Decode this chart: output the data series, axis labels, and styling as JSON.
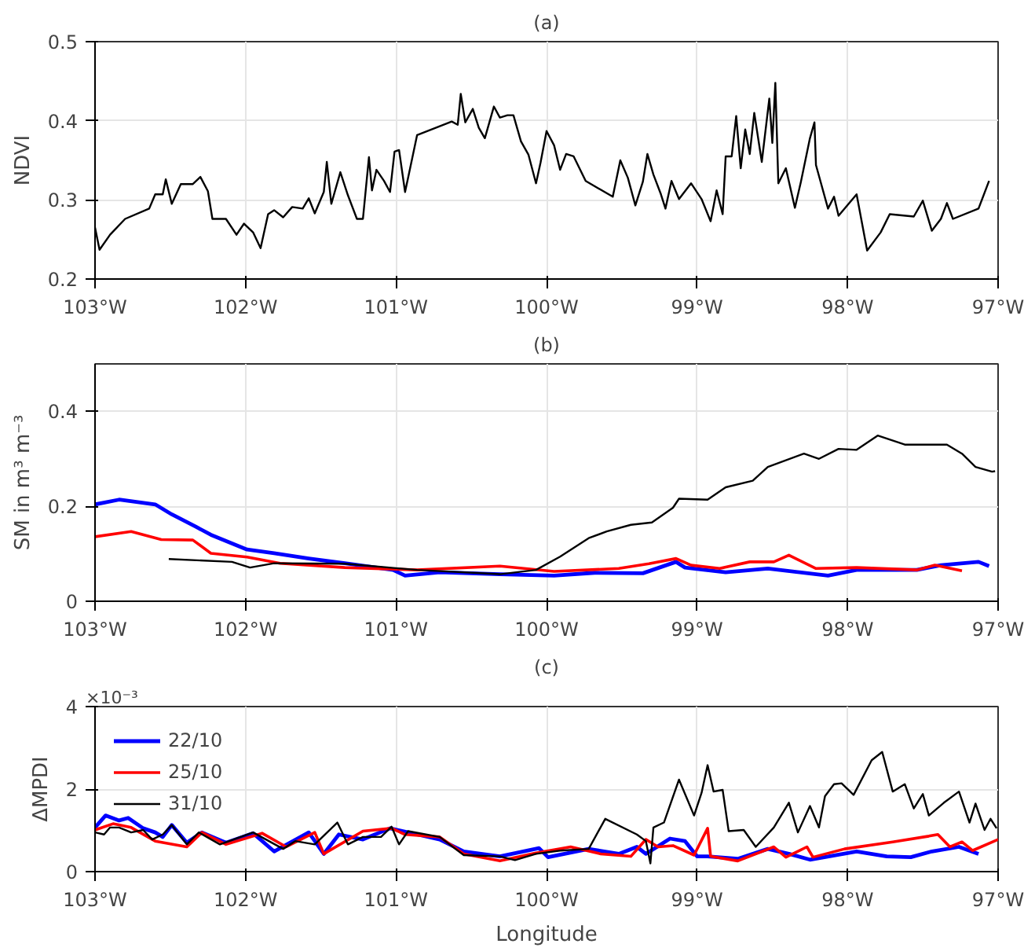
{
  "chart_data": [
    {
      "type": "line",
      "title": "(a)",
      "ylabel": "NDVI",
      "xlim": [
        -103,
        -97
      ],
      "ylim": [
        0.2,
        0.5
      ],
      "yticks": [
        0.2,
        0.3,
        0.4,
        0.5
      ],
      "xticks": [
        {
          "value": -103,
          "label": "103°W"
        },
        {
          "value": -102,
          "label": "102°W"
        },
        {
          "value": -101,
          "label": "101°W"
        },
        {
          "value": -100,
          "label": "100°W"
        },
        {
          "value": -99,
          "label": "99°W"
        },
        {
          "value": -98,
          "label": "98°W"
        },
        {
          "value": -97,
          "label": "97°W"
        }
      ],
      "grid": true,
      "legend": false,
      "series": [
        {
          "color": "#000000",
          "x": [
            -103.0,
            -102.97,
            -102.9,
            -102.8,
            -102.64,
            -102.6,
            -102.55,
            -102.53,
            -102.49,
            -102.43,
            -102.35,
            -102.3,
            -102.25,
            -102.22,
            -102.13,
            -102.06,
            -102.01,
            -101.95,
            -101.9,
            -101.85,
            -101.81,
            -101.75,
            -101.69,
            -101.62,
            -101.58,
            -101.54,
            -101.48,
            -101.46,
            -101.43,
            -101.37,
            -101.32,
            -101.26,
            -101.22,
            -101.18,
            -101.16,
            -101.13,
            -101.08,
            -101.04,
            -101.01,
            -100.98,
            -100.94,
            -100.92,
            -100.86,
            -100.63,
            -100.59,
            -100.57,
            -100.54,
            -100.49,
            -100.45,
            -100.41,
            -100.35,
            -100.31,
            -100.26,
            -100.22,
            -100.17,
            -100.12,
            -100.07,
            -100.04,
            -100.0,
            -99.95,
            -99.91,
            -99.87,
            -99.82,
            -99.74,
            -99.56,
            -99.51,
            -99.46,
            -99.41,
            -99.36,
            -99.33,
            -99.29,
            -99.24,
            -99.21,
            -99.17,
            -99.12,
            -99.04,
            -98.97,
            -98.91,
            -98.87,
            -98.83,
            -98.81,
            -98.77,
            -98.74,
            -98.71,
            -98.68,
            -98.65,
            -98.62,
            -98.57,
            -98.52,
            -98.5,
            -98.48,
            -98.46,
            -98.41,
            -98.35,
            -98.31,
            -98.25,
            -98.22,
            -98.21,
            -98.13,
            -98.09,
            -98.06,
            -97.94,
            -97.87,
            -97.78,
            -97.72,
            -97.56,
            -97.5,
            -97.44,
            -97.38,
            -97.34,
            -97.3,
            -97.13,
            -97.06
          ],
          "values": [
            0.265,
            0.237,
            0.256,
            0.276,
            0.289,
            0.307,
            0.307,
            0.326,
            0.295,
            0.32,
            0.32,
            0.329,
            0.311,
            0.276,
            0.276,
            0.256,
            0.27,
            0.259,
            0.239,
            0.282,
            0.287,
            0.278,
            0.291,
            0.289,
            0.302,
            0.283,
            0.31,
            0.348,
            0.295,
            0.335,
            0.306,
            0.276,
            0.276,
            0.354,
            0.312,
            0.338,
            0.324,
            0.31,
            0.361,
            0.363,
            0.31,
            0.328,
            0.382,
            0.399,
            0.395,
            0.434,
            0.398,
            0.415,
            0.391,
            0.378,
            0.418,
            0.404,
            0.407,
            0.407,
            0.374,
            0.357,
            0.321,
            0.347,
            0.387,
            0.369,
            0.338,
            0.358,
            0.355,
            0.324,
            0.304,
            0.35,
            0.328,
            0.293,
            0.323,
            0.358,
            0.332,
            0.307,
            0.289,
            0.324,
            0.301,
            0.321,
            0.301,
            0.273,
            0.312,
            0.282,
            0.355,
            0.355,
            0.406,
            0.34,
            0.389,
            0.358,
            0.41,
            0.348,
            0.428,
            0.372,
            0.448,
            0.321,
            0.34,
            0.29,
            0.323,
            0.378,
            0.398,
            0.344,
            0.289,
            0.304,
            0.28,
            0.307,
            0.236,
            0.259,
            0.282,
            0.279,
            0.299,
            0.261,
            0.276,
            0.296,
            0.276,
            0.289,
            0.324
          ]
        }
      ]
    },
    {
      "type": "line",
      "title": "(b)",
      "ylabel": "SM in m³ m⁻³",
      "xlim": [
        -103,
        -97
      ],
      "ylim": [
        0,
        0.5
      ],
      "yticks": [
        0,
        0.2,
        0.4
      ],
      "xticks": [
        {
          "value": -103,
          "label": "103°W"
        },
        {
          "value": -102,
          "label": "102°W"
        },
        {
          "value": -101,
          "label": "101°W"
        },
        {
          "value": -100,
          "label": "100°W"
        },
        {
          "value": -99,
          "label": "99°W"
        },
        {
          "value": -98,
          "label": "98°W"
        },
        {
          "value": -97,
          "label": "97°W"
        }
      ],
      "grid": true,
      "legend": false,
      "series": [
        {
          "color": "#0000ff",
          "x": [
            -103.0,
            -102.84,
            -102.6,
            -102.49,
            -102.33,
            -102.23,
            -101.99,
            -101.81,
            -101.58,
            -101.34,
            -101.02,
            -100.94,
            -100.71,
            -100.31,
            -99.95,
            -99.68,
            -99.36,
            -99.14,
            -99.08,
            -98.81,
            -98.53,
            -98.13,
            -97.94,
            -97.54,
            -97.38,
            -97.13,
            -97.06
          ],
          "values": [
            0.204,
            0.214,
            0.204,
            0.183,
            0.157,
            0.14,
            0.109,
            0.101,
            0.09,
            0.08,
            0.066,
            0.054,
            0.061,
            0.057,
            0.054,
            0.06,
            0.059,
            0.083,
            0.071,
            0.061,
            0.069,
            0.054,
            0.066,
            0.066,
            0.076,
            0.083,
            0.074
          ]
        },
        {
          "color": "#ff0000",
          "x": [
            -103.0,
            -102.76,
            -102.56,
            -102.35,
            -102.23,
            -101.99,
            -101.77,
            -101.34,
            -100.86,
            -100.31,
            -99.95,
            -99.52,
            -99.32,
            -99.14,
            -99.04,
            -98.85,
            -98.65,
            -98.49,
            -98.39,
            -98.21,
            -97.94,
            -97.54,
            -97.42,
            -97.24
          ],
          "values": [
            0.136,
            0.147,
            0.13,
            0.129,
            0.101,
            0.093,
            0.08,
            0.071,
            0.066,
            0.074,
            0.063,
            0.069,
            0.079,
            0.09,
            0.076,
            0.069,
            0.083,
            0.083,
            0.097,
            0.069,
            0.071,
            0.066,
            0.076,
            0.064
          ]
        },
        {
          "color": "#000000",
          "x": [
            -102.51,
            -102.09,
            -101.97,
            -101.81,
            -101.34,
            -100.86,
            -100.31,
            -100.07,
            -99.91,
            -99.72,
            -99.6,
            -99.44,
            -99.3,
            -99.16,
            -99.12,
            -98.93,
            -98.81,
            -98.63,
            -98.53,
            -98.29,
            -98.19,
            -98.06,
            -97.94,
            -97.8,
            -97.62,
            -97.34,
            -97.24,
            -97.15,
            -97.04,
            -97.02
          ],
          "values": [
            0.089,
            0.083,
            0.071,
            0.08,
            0.079,
            0.066,
            0.057,
            0.066,
            0.094,
            0.133,
            0.147,
            0.161,
            0.166,
            0.197,
            0.216,
            0.214,
            0.24,
            0.254,
            0.283,
            0.311,
            0.3,
            0.321,
            0.319,
            0.349,
            0.33,
            0.33,
            0.311,
            0.283,
            0.273,
            0.274
          ]
        }
      ]
    },
    {
      "type": "line",
      "title": "(c)",
      "ylabel": "ΔMPDI",
      "xlabel": "Longitude",
      "annotations": [
        "×10⁻³"
      ],
      "xlim": [
        -103,
        -97
      ],
      "ylim": [
        0,
        4
      ],
      "yticks": [
        0,
        2,
        4
      ],
      "xticks": [
        {
          "value": -103,
          "label": "103°W"
        },
        {
          "value": -102,
          "label": "102°W"
        },
        {
          "value": -101,
          "label": "101°W"
        },
        {
          "value": -100,
          "label": "100°W"
        },
        {
          "value": -99,
          "label": "99°W"
        },
        {
          "value": -98,
          "label": "98°W"
        },
        {
          "value": -97,
          "label": "97°W"
        }
      ],
      "grid": true,
      "legend": "top left",
      "series": [
        {
          "name": "22/10",
          "color": "#0000ff",
          "x": [
            -103.0,
            -102.93,
            -102.84,
            -102.78,
            -102.68,
            -102.6,
            -102.55,
            -102.49,
            -102.39,
            -102.29,
            -102.13,
            -101.95,
            -101.81,
            -101.58,
            -101.48,
            -101.38,
            -101.22,
            -101.04,
            -100.71,
            -100.55,
            -100.31,
            -100.05,
            -99.99,
            -99.72,
            -99.52,
            -99.4,
            -99.34,
            -99.18,
            -99.08,
            -99.0,
            -98.93,
            -98.73,
            -98.53,
            -98.39,
            -98.25,
            -97.94,
            -97.74,
            -97.58,
            -97.44,
            -97.26,
            -97.13
          ],
          "values": [
            1.07,
            1.36,
            1.24,
            1.3,
            1.05,
            0.95,
            0.84,
            1.13,
            0.7,
            0.95,
            0.7,
            0.93,
            0.49,
            0.95,
            0.43,
            0.9,
            0.78,
            1.05,
            0.78,
            0.49,
            0.37,
            0.57,
            0.35,
            0.55,
            0.43,
            0.6,
            0.43,
            0.8,
            0.74,
            0.37,
            0.37,
            0.31,
            0.55,
            0.43,
            0.29,
            0.49,
            0.37,
            0.35,
            0.49,
            0.6,
            0.43
          ]
        },
        {
          "name": "25/10",
          "color": "#ff0000",
          "x": [
            -103.0,
            -102.88,
            -102.76,
            -102.6,
            -102.39,
            -102.29,
            -102.13,
            -101.89,
            -101.73,
            -101.54,
            -101.48,
            -101.22,
            -101.03,
            -100.94,
            -100.71,
            -100.55,
            -100.31,
            -100.07,
            -99.84,
            -99.64,
            -99.44,
            -99.34,
            -99.26,
            -99.16,
            -99.02,
            -98.93,
            -98.91,
            -98.73,
            -98.49,
            -98.41,
            -98.27,
            -98.23,
            -98.02,
            -97.7,
            -97.46,
            -97.4,
            -97.32,
            -97.24,
            -97.17,
            -97.0
          ],
          "values": [
            1.01,
            1.16,
            1.07,
            0.74,
            0.6,
            0.95,
            0.66,
            0.93,
            0.6,
            0.95,
            0.43,
            0.98,
            1.05,
            0.9,
            0.84,
            0.43,
            0.26,
            0.45,
            0.6,
            0.43,
            0.37,
            0.78,
            0.6,
            0.63,
            0.4,
            1.05,
            0.37,
            0.26,
            0.6,
            0.35,
            0.6,
            0.35,
            0.55,
            0.72,
            0.86,
            0.9,
            0.6,
            0.72,
            0.51,
            0.78
          ]
        },
        {
          "name": "31/10",
          "color": "#000000",
          "x": [
            -103.0,
            -102.94,
            -102.9,
            -102.84,
            -102.76,
            -102.68,
            -102.62,
            -102.55,
            -102.49,
            -102.39,
            -102.31,
            -102.17,
            -101.95,
            -101.75,
            -101.67,
            -101.54,
            -101.39,
            -101.32,
            -101.22,
            -101.1,
            -101.03,
            -100.98,
            -100.92,
            -100.71,
            -100.55,
            -100.31,
            -100.21,
            -100.07,
            -99.91,
            -99.72,
            -99.61,
            -99.4,
            -99.34,
            -99.31,
            -99.29,
            -99.22,
            -99.12,
            -99.02,
            -98.97,
            -98.93,
            -98.89,
            -98.83,
            -98.79,
            -98.69,
            -98.61,
            -98.49,
            -98.39,
            -98.33,
            -98.25,
            -98.19,
            -98.15,
            -98.09,
            -98.04,
            -97.96,
            -97.84,
            -97.77,
            -97.7,
            -97.62,
            -97.56,
            -97.5,
            -97.46,
            -97.36,
            -97.26,
            -97.19,
            -97.15,
            -97.09,
            -97.05,
            -97.01
          ],
          "values": [
            0.95,
            0.9,
            1.07,
            1.07,
            0.95,
            1.01,
            0.78,
            0.9,
            1.13,
            0.66,
            0.95,
            0.66,
            0.95,
            0.55,
            0.74,
            0.66,
            1.19,
            0.66,
            0.84,
            0.84,
            1.09,
            0.66,
            0.98,
            0.84,
            0.4,
            0.37,
            0.28,
            0.43,
            0.51,
            0.55,
            1.28,
            0.9,
            0.74,
            0.2,
            1.07,
            1.19,
            2.23,
            1.36,
            1.91,
            2.58,
            1.94,
            1.98,
            0.98,
            1.01,
            0.6,
            1.07,
            1.67,
            0.95,
            1.59,
            1.07,
            1.83,
            2.12,
            2.14,
            1.86,
            2.7,
            2.9,
            1.94,
            2.12,
            1.53,
            1.88,
            1.36,
            1.67,
            1.94,
            1.19,
            1.65,
            1.01,
            1.28,
            1.05
          ]
        }
      ]
    }
  ]
}
